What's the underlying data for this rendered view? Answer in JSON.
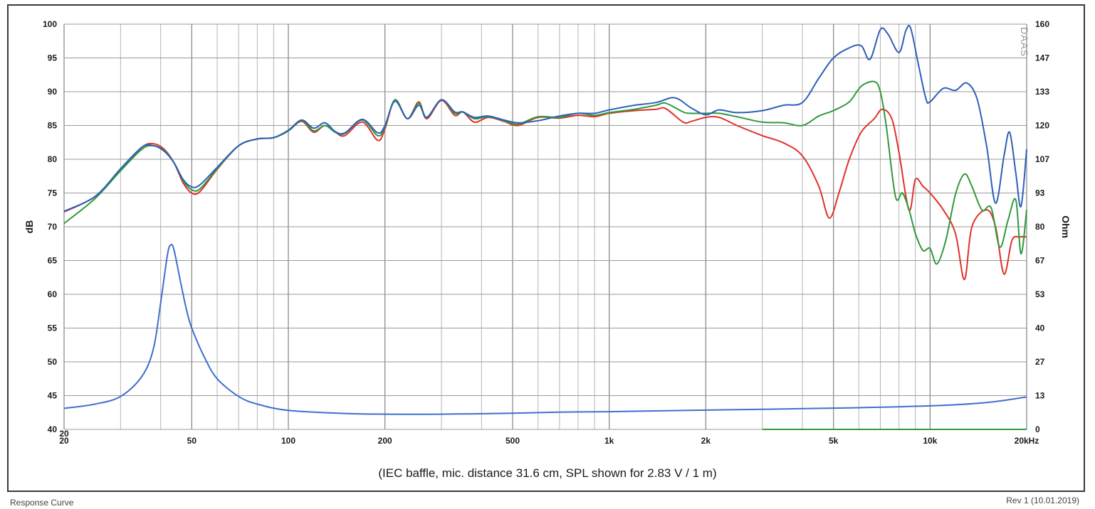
{
  "caption": "(IEC baffle, mic. distance 31.6 cm, SPL shown for 2.83 V / 1 m)",
  "footer": {
    "left": "Response Curve",
    "right": "Rev 1 (10.01.2019)"
  },
  "watermark": "DAAS",
  "chart_data": {
    "type": "line",
    "xscale": "log",
    "xlim": [
      20,
      20000
    ],
    "ylim": [
      40,
      100
    ],
    "y2lim": [
      0,
      160
    ],
    "ylabel": "dB",
    "y2label": "Ohm",
    "grid": true,
    "x_tick_labels": [
      {
        "v": 20,
        "label": "20"
      },
      {
        "v": 50,
        "label": "50"
      },
      {
        "v": 100,
        "label": "100"
      },
      {
        "v": 200,
        "label": "200"
      },
      {
        "v": 500,
        "label": "500"
      },
      {
        "v": 1000,
        "label": "1k"
      },
      {
        "v": 2000,
        "label": "2k"
      },
      {
        "v": 5000,
        "label": "5k"
      },
      {
        "v": 10000,
        "label": "10k"
      },
      {
        "v": 20000,
        "label": "20kHz"
      }
    ],
    "y_ticks": [
      40,
      45,
      50,
      55,
      60,
      65,
      70,
      75,
      80,
      85,
      90,
      95,
      100
    ],
    "y2_ticks": [
      {
        "v": 0,
        "label": "0"
      },
      {
        "v": 13.3,
        "label": "13"
      },
      {
        "v": 26.7,
        "label": "27"
      },
      {
        "v": 40,
        "label": "40"
      },
      {
        "v": 53.3,
        "label": "53"
      },
      {
        "v": 66.7,
        "label": "67"
      },
      {
        "v": 80,
        "label": "80"
      },
      {
        "v": 93.3,
        "label": "93"
      },
      {
        "v": 106.7,
        "label": "107"
      },
      {
        "v": 120,
        "label": "120"
      },
      {
        "v": 133.3,
        "label": "133"
      },
      {
        "v": 146.7,
        "label": "147"
      },
      {
        "v": 160,
        "label": "160"
      }
    ],
    "colors": {
      "red": "#e0312b",
      "green": "#2e9a3c",
      "blue": "#2e5fb8",
      "impedance": "#3f6fcc"
    },
    "series": [
      {
        "key": "red",
        "axis": "left",
        "points": [
          [
            20,
            72.2
          ],
          [
            25,
            74.5
          ],
          [
            30,
            78.5
          ],
          [
            35,
            81.8
          ],
          [
            38,
            82.3
          ],
          [
            41,
            81.5
          ],
          [
            44,
            79.5
          ],
          [
            47,
            76.5
          ],
          [
            50,
            75
          ],
          [
            53,
            75.2
          ],
          [
            60,
            78.5
          ],
          [
            70,
            82
          ],
          [
            80,
            83
          ],
          [
            90,
            83.2
          ],
          [
            100,
            84.2
          ],
          [
            110,
            85.6
          ],
          [
            120,
            84
          ],
          [
            130,
            85
          ],
          [
            140,
            84
          ],
          [
            150,
            83.5
          ],
          [
            170,
            85.5
          ],
          [
            190,
            82.8
          ],
          [
            200,
            84.5
          ],
          [
            215,
            88.8
          ],
          [
            235,
            86
          ],
          [
            255,
            88.5
          ],
          [
            270,
            86
          ],
          [
            300,
            88.7
          ],
          [
            330,
            86.5
          ],
          [
            350,
            87
          ],
          [
            380,
            85.5
          ],
          [
            420,
            86.2
          ],
          [
            470,
            85.6
          ],
          [
            520,
            85
          ],
          [
            600,
            86.2
          ],
          [
            700,
            86.1
          ],
          [
            800,
            86.5
          ],
          [
            900,
            86.3
          ],
          [
            1000,
            86.8
          ],
          [
            1200,
            87.2
          ],
          [
            1400,
            87.4
          ],
          [
            1500,
            87.5
          ],
          [
            1700,
            85.5
          ],
          [
            1800,
            85.6
          ],
          [
            2000,
            86.2
          ],
          [
            2200,
            86.2
          ],
          [
            2500,
            85
          ],
          [
            3000,
            83.5
          ],
          [
            3500,
            82.4
          ],
          [
            4000,
            80.5
          ],
          [
            4500,
            76
          ],
          [
            4850,
            71.3
          ],
          [
            5200,
            75
          ],
          [
            5600,
            80
          ],
          [
            6100,
            84
          ],
          [
            6700,
            86
          ],
          [
            7100,
            87.4
          ],
          [
            7600,
            86
          ],
          [
            8000,
            81
          ],
          [
            8600,
            72.5
          ],
          [
            9000,
            77
          ],
          [
            9500,
            76
          ],
          [
            10000,
            75
          ],
          [
            11000,
            72.5
          ],
          [
            12000,
            69
          ],
          [
            12800,
            62.2
          ],
          [
            13500,
            70
          ],
          [
            15000,
            72.5
          ],
          [
            16000,
            70
          ],
          [
            17000,
            63
          ],
          [
            18000,
            68
          ],
          [
            19000,
            68.5
          ],
          [
            20000,
            68.5
          ]
        ]
      },
      {
        "key": "green",
        "axis": "left",
        "points": [
          [
            20,
            70.5
          ],
          [
            25,
            74.2
          ],
          [
            30,
            78.3
          ],
          [
            35,
            81.5
          ],
          [
            38,
            82
          ],
          [
            41,
            81.3
          ],
          [
            44,
            79.5
          ],
          [
            47,
            76.8
          ],
          [
            50,
            75.5
          ],
          [
            53,
            75.6
          ],
          [
            60,
            78.6
          ],
          [
            70,
            82
          ],
          [
            80,
            83
          ],
          [
            90,
            83.2
          ],
          [
            100,
            84.2
          ],
          [
            110,
            85.7
          ],
          [
            120,
            84.2
          ],
          [
            130,
            85
          ],
          [
            140,
            84
          ],
          [
            150,
            83.8
          ],
          [
            170,
            85.8
          ],
          [
            190,
            83.5
          ],
          [
            200,
            84.8
          ],
          [
            215,
            88.8
          ],
          [
            235,
            86
          ],
          [
            255,
            88.3
          ],
          [
            270,
            86.2
          ],
          [
            300,
            88.8
          ],
          [
            330,
            86.8
          ],
          [
            350,
            87
          ],
          [
            380,
            86
          ],
          [
            420,
            86.3
          ],
          [
            470,
            85.7
          ],
          [
            520,
            85.2
          ],
          [
            600,
            86.3
          ],
          [
            700,
            86.2
          ],
          [
            800,
            86.8
          ],
          [
            900,
            86.5
          ],
          [
            1000,
            86.9
          ],
          [
            1200,
            87.4
          ],
          [
            1400,
            88
          ],
          [
            1500,
            88.3
          ],
          [
            1700,
            87
          ],
          [
            1800,
            86.8
          ],
          [
            2000,
            86.8
          ],
          [
            2200,
            86.8
          ],
          [
            2500,
            86.3
          ],
          [
            3000,
            85.5
          ],
          [
            3500,
            85.4
          ],
          [
            4000,
            85
          ],
          [
            4500,
            86.4
          ],
          [
            5000,
            87.2
          ],
          [
            5600,
            88.5
          ],
          [
            6100,
            90.8
          ],
          [
            6700,
            91.5
          ],
          [
            7000,
            90
          ],
          [
            7300,
            85
          ],
          [
            7800,
            74.5
          ],
          [
            8200,
            75
          ],
          [
            8600,
            72.5
          ],
          [
            9000,
            69
          ],
          [
            9500,
            66.5
          ],
          [
            10000,
            66.8
          ],
          [
            10500,
            64.5
          ],
          [
            11200,
            68
          ],
          [
            12000,
            74.8
          ],
          [
            12800,
            77.8
          ],
          [
            13500,
            76
          ],
          [
            14500,
            72.5
          ],
          [
            15500,
            72.8
          ],
          [
            16500,
            67
          ],
          [
            17500,
            71
          ],
          [
            18500,
            74
          ],
          [
            19200,
            66
          ],
          [
            20000,
            72.5
          ]
        ]
      },
      {
        "key": "blue",
        "axis": "left",
        "points": [
          [
            20,
            72.3
          ],
          [
            25,
            74.5
          ],
          [
            30,
            78.6
          ],
          [
            35,
            81.8
          ],
          [
            38,
            82
          ],
          [
            41,
            81.2
          ],
          [
            44,
            79.5
          ],
          [
            47,
            77
          ],
          [
            50,
            75.9
          ],
          [
            53,
            76.2
          ],
          [
            60,
            78.8
          ],
          [
            70,
            82
          ],
          [
            80,
            83
          ],
          [
            90,
            83.2
          ],
          [
            100,
            84.3
          ],
          [
            110,
            85.8
          ],
          [
            120,
            84.6
          ],
          [
            130,
            85.4
          ],
          [
            140,
            84.1
          ],
          [
            150,
            83.9
          ],
          [
            170,
            85.9
          ],
          [
            190,
            83.9
          ],
          [
            200,
            85
          ],
          [
            215,
            88.6
          ],
          [
            235,
            86
          ],
          [
            255,
            88
          ],
          [
            270,
            86.2
          ],
          [
            300,
            88.8
          ],
          [
            330,
            87
          ],
          [
            350,
            87
          ],
          [
            380,
            86.2
          ],
          [
            420,
            86.4
          ],
          [
            470,
            85.8
          ],
          [
            520,
            85.4
          ],
          [
            600,
            85.7
          ],
          [
            700,
            86.4
          ],
          [
            800,
            86.8
          ],
          [
            900,
            86.8
          ],
          [
            1000,
            87.3
          ],
          [
            1200,
            88
          ],
          [
            1400,
            88.4
          ],
          [
            1600,
            89.1
          ],
          [
            1800,
            87.6
          ],
          [
            2000,
            86.6
          ],
          [
            2200,
            87.3
          ],
          [
            2500,
            86.9
          ],
          [
            3000,
            87.2
          ],
          [
            3500,
            88
          ],
          [
            4000,
            88.4
          ],
          [
            4500,
            92
          ],
          [
            5000,
            95
          ],
          [
            5600,
            96.5
          ],
          [
            6100,
            96.8
          ],
          [
            6500,
            94.8
          ],
          [
            7000,
            99.2
          ],
          [
            7400,
            98.5
          ],
          [
            8000,
            95.8
          ],
          [
            8400,
            99
          ],
          [
            8700,
            99.4
          ],
          [
            9200,
            94
          ],
          [
            9700,
            89
          ],
          [
            10000,
            88.5
          ],
          [
            11000,
            90.5
          ],
          [
            12000,
            90.2
          ],
          [
            13000,
            91.3
          ],
          [
            14000,
            89
          ],
          [
            15000,
            82
          ],
          [
            16000,
            73.5
          ],
          [
            17000,
            80.5
          ],
          [
            17700,
            84
          ],
          [
            18500,
            78
          ],
          [
            19200,
            73
          ],
          [
            20000,
            81.5
          ]
        ]
      },
      {
        "key": "impedance",
        "axis": "right",
        "points": [
          [
            20,
            8.3
          ],
          [
            25,
            10
          ],
          [
            30,
            13
          ],
          [
            35,
            21
          ],
          [
            38,
            32
          ],
          [
            40,
            50
          ],
          [
            42,
            69
          ],
          [
            43,
            72.8
          ],
          [
            44,
            71
          ],
          [
            46,
            59
          ],
          [
            48,
            48
          ],
          [
            50,
            40
          ],
          [
            55,
            28
          ],
          [
            60,
            20
          ],
          [
            70,
            13
          ],
          [
            80,
            10
          ],
          [
            100,
            7.5
          ],
          [
            150,
            6.3
          ],
          [
            200,
            6
          ],
          [
            300,
            6
          ],
          [
            500,
            6.4
          ],
          [
            700,
            6.8
          ],
          [
            1000,
            7
          ],
          [
            2000,
            7.6
          ],
          [
            5000,
            8.4
          ],
          [
            10000,
            9.3
          ],
          [
            15000,
            10.6
          ],
          [
            20000,
            12.8
          ]
        ]
      }
    ]
  }
}
